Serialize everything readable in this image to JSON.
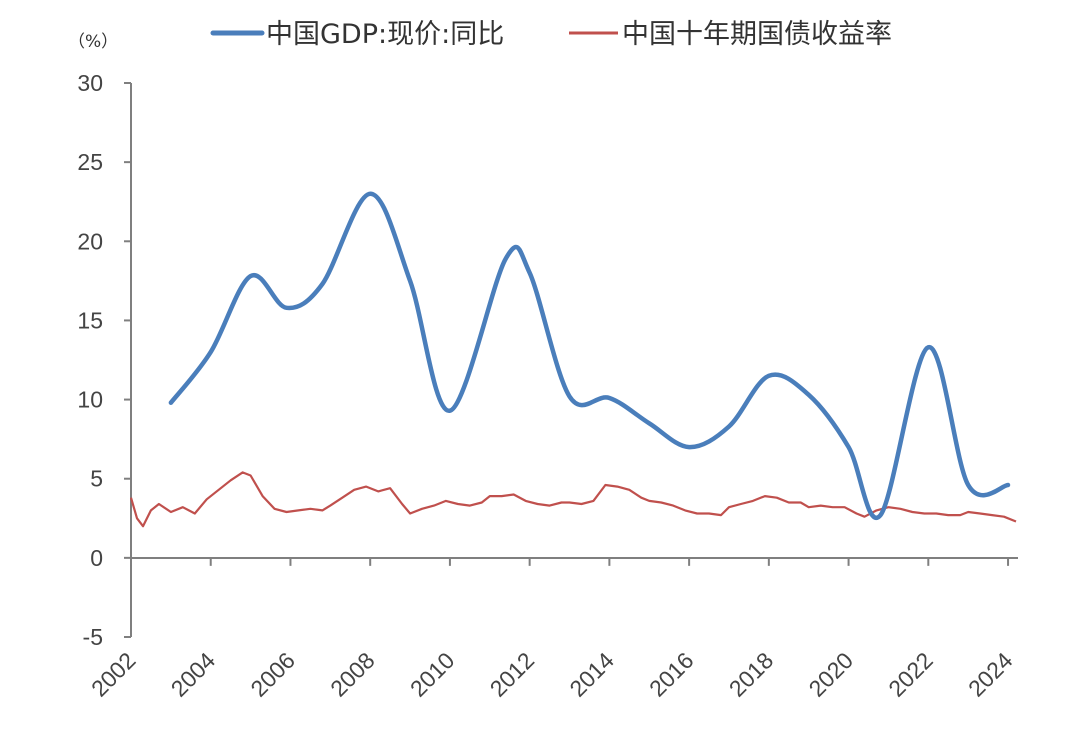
{
  "chart_data": {
    "type": "line",
    "title": "",
    "xlabel": "",
    "ylabel": "",
    "unit_label": "（%）",
    "xlim": [
      2002,
      2024.25
    ],
    "ylim": [
      -5,
      30
    ],
    "x_ticks": [
      "2002",
      "2004",
      "2006",
      "2008",
      "2010",
      "2012",
      "2014",
      "2016",
      "2018",
      "2020",
      "2022",
      "2024"
    ],
    "y_ticks": [
      "30",
      "25",
      "20",
      "15",
      "10",
      "5",
      "0",
      "-5"
    ],
    "legend_position": "top",
    "grid": false,
    "series": [
      {
        "name": "中国GDP:现价:同比",
        "color": "#4a7ebb",
        "x": [
          2003.0,
          2004.0,
          2005.0,
          2005.9,
          2006.8,
          2008.0,
          2009.0,
          2010.0,
          2011.4,
          2012.0,
          2013.0,
          2014.0,
          2015.0,
          2016.0,
          2017.0,
          2018.0,
          2019.0,
          2020.0,
          2020.8,
          2022.0,
          2023.0,
          2024.0
        ],
        "y": [
          9.8,
          13.0,
          17.8,
          15.8,
          17.3,
          23.0,
          17.5,
          9.3,
          18.9,
          18.0,
          10.2,
          10.1,
          8.5,
          7.0,
          8.3,
          11.5,
          10.3,
          7.0,
          2.7,
          13.3,
          4.6,
          4.6
        ]
      },
      {
        "name": "中国十年期国债收益率",
        "color": "#c0504d",
        "x": [
          2002.0,
          2002.15,
          2002.3,
          2002.5,
          2002.7,
          2003.0,
          2003.3,
          2003.6,
          2003.9,
          2004.2,
          2004.5,
          2004.8,
          2005.0,
          2005.3,
          2005.6,
          2005.9,
          2006.2,
          2006.5,
          2006.8,
          2007.0,
          2007.3,
          2007.6,
          2007.9,
          2008.2,
          2008.5,
          2008.8,
          2009.0,
          2009.3,
          2009.6,
          2009.9,
          2010.2,
          2010.5,
          2010.8,
          2011.0,
          2011.3,
          2011.6,
          2011.9,
          2012.2,
          2012.5,
          2012.8,
          2013.0,
          2013.3,
          2013.6,
          2013.9,
          2014.2,
          2014.5,
          2014.8,
          2015.0,
          2015.3,
          2015.6,
          2015.9,
          2016.2,
          2016.5,
          2016.8,
          2017.0,
          2017.3,
          2017.6,
          2017.9,
          2018.2,
          2018.5,
          2018.8,
          2019.0,
          2019.3,
          2019.6,
          2019.9,
          2020.2,
          2020.4,
          2020.7,
          2021.0,
          2021.3,
          2021.6,
          2021.9,
          2022.2,
          2022.5,
          2022.8,
          2023.0,
          2023.3,
          2023.6,
          2023.9,
          2024.2
        ],
        "y": [
          3.8,
          2.5,
          2.0,
          3.0,
          3.4,
          2.9,
          3.2,
          2.8,
          3.7,
          4.3,
          4.9,
          5.4,
          5.2,
          3.9,
          3.1,
          2.9,
          3.0,
          3.1,
          3.0,
          3.3,
          3.8,
          4.3,
          4.5,
          4.2,
          4.4,
          3.4,
          2.8,
          3.1,
          3.3,
          3.6,
          3.4,
          3.3,
          3.5,
          3.9,
          3.9,
          4.0,
          3.6,
          3.4,
          3.3,
          3.5,
          3.5,
          3.4,
          3.6,
          4.6,
          4.5,
          4.3,
          3.8,
          3.6,
          3.5,
          3.3,
          3.0,
          2.8,
          2.8,
          2.7,
          3.2,
          3.4,
          3.6,
          3.9,
          3.8,
          3.5,
          3.5,
          3.2,
          3.3,
          3.2,
          3.2,
          2.8,
          2.6,
          3.0,
          3.2,
          3.1,
          2.9,
          2.8,
          2.8,
          2.7,
          2.7,
          2.9,
          2.8,
          2.7,
          2.6,
          2.3
        ]
      }
    ]
  }
}
